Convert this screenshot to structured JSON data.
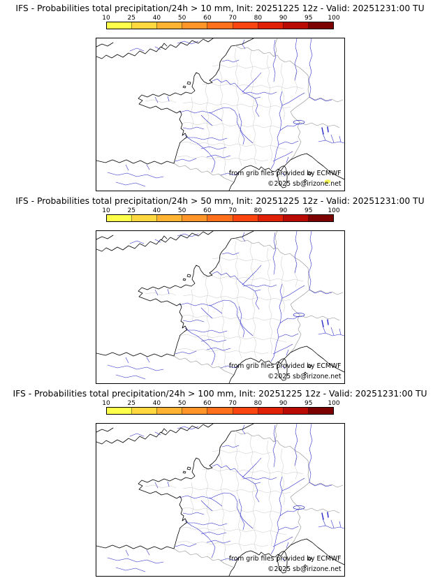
{
  "page": {
    "background": "#ffffff"
  },
  "colorbar": {
    "tick_labels": [
      "10",
      "25",
      "40",
      "50",
      "60",
      "70",
      "80",
      "90",
      "95",
      "100"
    ],
    "segment_colors": [
      "#fdff4a",
      "#ffd73e",
      "#ffb332",
      "#ff9428",
      "#ff701c",
      "#fb4511",
      "#e02108",
      "#b90b03",
      "#7c0101"
    ]
  },
  "map_colors": {
    "coastline": "#000000",
    "rivers": "#2525c8",
    "departments": "#c3c3c3",
    "borders": "#8f8f8f",
    "probability_spot": "#f8fb4e"
  },
  "panels": [
    {
      "threshold": "> 10 mm",
      "title": "IFS - Probabilities total precipitation/24h > 10 mm, Init: 20251225 12z - Valid: 20251231:00 TU",
      "attribution_line1": "from grib files provided by ECMWF",
      "attribution_line2": "©2025 sb@irizone.net"
    },
    {
      "threshold": "> 50 mm",
      "title": "IFS - Probabilities total precipitation/24h > 50 mm, Init: 20251225 12z - Valid: 20251231:00 TU",
      "attribution_line1": "from grib files provided by ECMWF",
      "attribution_line2": "©2025 sb@irizone.net"
    },
    {
      "threshold": "> 100 mm",
      "title": "IFS - Probabilities total precipitation/24h > 100 mm, Init: 20251225 12z - Valid: 20251231:00 TU",
      "attribution_line1": "from grib files provided by ECMWF",
      "attribution_line2": "©2025 sb@irizone.net"
    }
  ]
}
